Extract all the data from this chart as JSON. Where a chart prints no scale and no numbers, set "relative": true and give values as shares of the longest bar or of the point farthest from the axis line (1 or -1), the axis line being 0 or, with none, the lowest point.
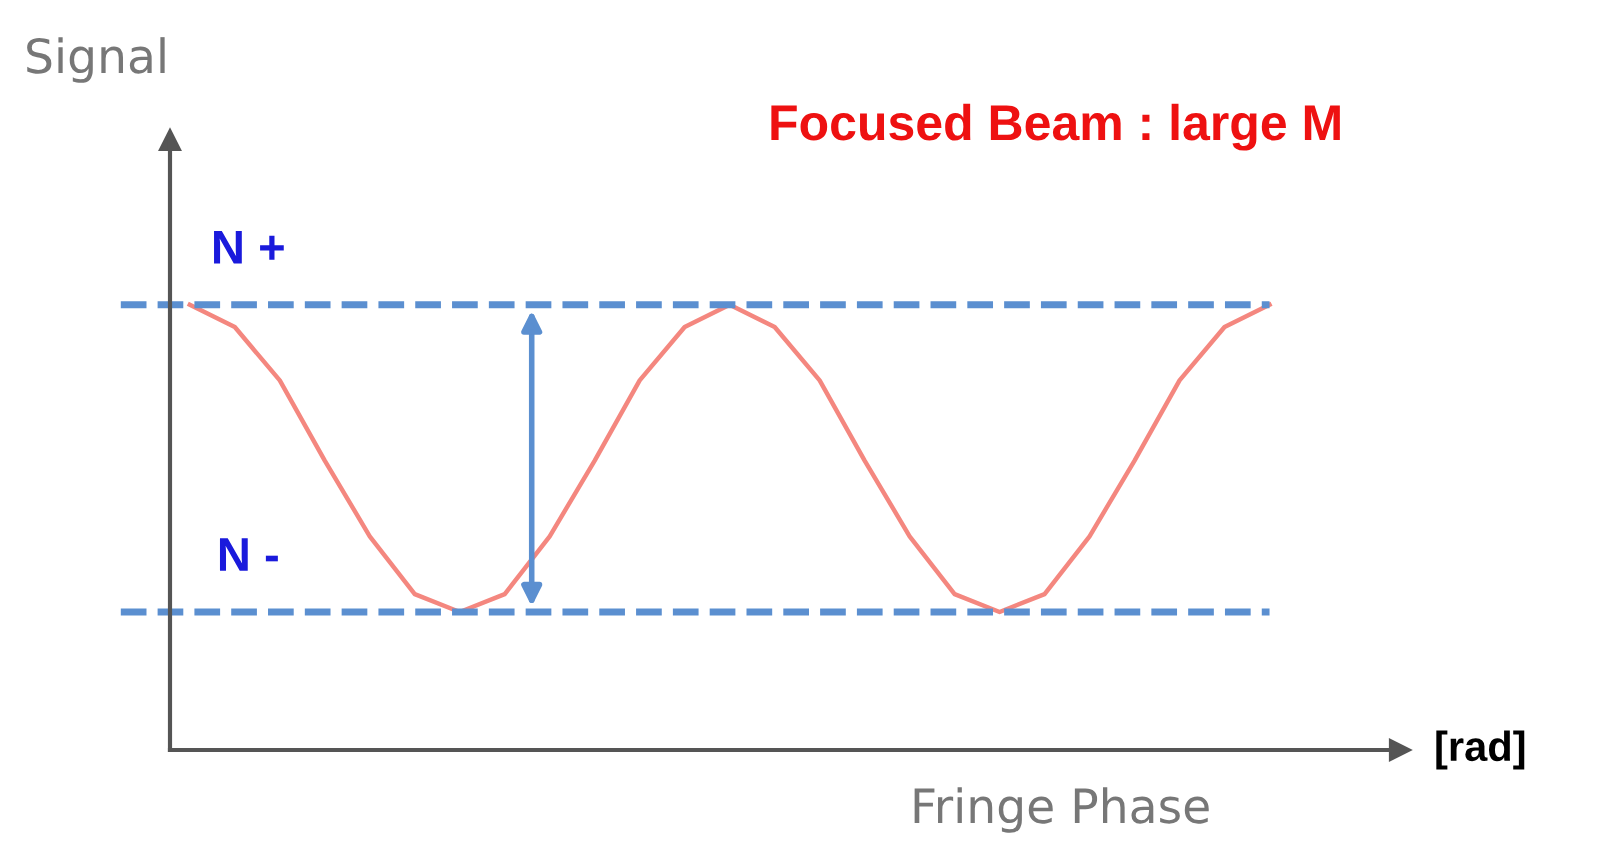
{
  "chart_data": {
    "type": "line",
    "relative": true,
    "title": "Focused Beam : large M",
    "xlabel": "Fringe Phase",
    "ylabel": "Signal",
    "annotations": [
      "[rad]"
    ],
    "categories": [
      null,
      null,
      null,
      null,
      null,
      null,
      null,
      null,
      null,
      null,
      null,
      null,
      null,
      null,
      null,
      null,
      null,
      null,
      null,
      null,
      null,
      null,
      null,
      null,
      null
    ],
    "series": [
      {
        "color": "#f4877f",
        "values": [
          1,
          0.95,
          0.83,
          0.65,
          0.48,
          0.35,
          0.31,
          0.35,
          0.48,
          0.65,
          0.83,
          0.95,
          1,
          0.95,
          0.83,
          0.65,
          0.48,
          0.35,
          0.31,
          0.35,
          0.48,
          0.65,
          0.83,
          0.95,
          1
        ]
      }
    ],
    "ref_lines": [
      {
        "axis": "y",
        "value": 1,
        "label": "N +",
        "color": "#5b8fd0",
        "line_style": "dashed"
      },
      {
        "axis": "y",
        "value": 0.31,
        "label": "N -",
        "color": "#5b8fd0",
        "line_style": "dashed"
      }
    ],
    "grid": false,
    "legend": false,
    "marker": "none",
    "line_style": "solid"
  }
}
